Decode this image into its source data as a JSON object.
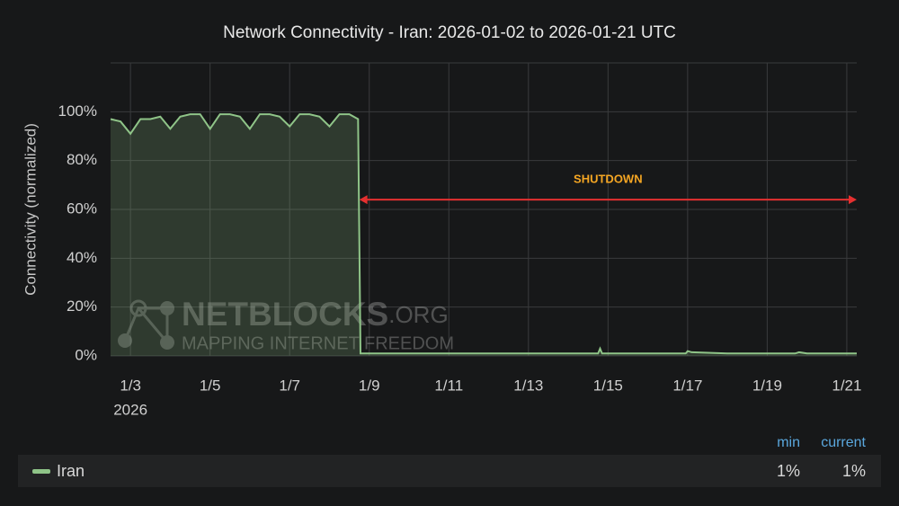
{
  "chart_data": {
    "type": "line",
    "title": "Network Connectivity - Iran: 2026-01-02 to 2026-01-21 UTC",
    "y_label": "Connectivity (normalized)",
    "x_year_label": "2026",
    "x": [
      2.5,
      2.75,
      3.0,
      3.25,
      3.5,
      3.75,
      4.0,
      4.25,
      4.5,
      4.75,
      5.0,
      5.25,
      5.5,
      5.75,
      6.0,
      6.25,
      6.5,
      6.75,
      7.0,
      7.25,
      7.5,
      7.75,
      8.0,
      8.25,
      8.5,
      8.72,
      8.78,
      9.0,
      10.0,
      11.0,
      12.0,
      13.0,
      14.0,
      14.75,
      14.8,
      14.85,
      15.0,
      16.0,
      16.95,
      17.0,
      17.1,
      18.0,
      19.0,
      19.7,
      19.8,
      20.0,
      21.0,
      21.25
    ],
    "series": [
      {
        "name": "Iran",
        "color": "#8fc488",
        "values": [
          97,
          96,
          91,
          97,
          97,
          98,
          93,
          98,
          99,
          99,
          93,
          99,
          99,
          98,
          93,
          99,
          99,
          98,
          94,
          99,
          99,
          98,
          94,
          99,
          99,
          97,
          1,
          1,
          1,
          1,
          1,
          1,
          1,
          1,
          3,
          1,
          1,
          1,
          1,
          2,
          1.5,
          1,
          1,
          1,
          1.5,
          1,
          1,
          1
        ]
      }
    ],
    "xlim": [
      2.5,
      21.25
    ],
    "xticks": [
      {
        "value": 3,
        "label": "1/3"
      },
      {
        "value": 5,
        "label": "1/5"
      },
      {
        "value": 7,
        "label": "1/7"
      },
      {
        "value": 9,
        "label": "1/9"
      },
      {
        "value": 11,
        "label": "1/11"
      },
      {
        "value": 13,
        "label": "1/13"
      },
      {
        "value": 15,
        "label": "1/15"
      },
      {
        "value": 17,
        "label": "1/17"
      },
      {
        "value": 19,
        "label": "1/19"
      },
      {
        "value": 21,
        "label": "1/21"
      }
    ],
    "ylim": [
      0,
      120
    ],
    "yticks": [
      {
        "value": 0,
        "label": "0%"
      },
      {
        "value": 20,
        "label": "20%"
      },
      {
        "value": 40,
        "label": "40%"
      },
      {
        "value": 60,
        "label": "60%"
      },
      {
        "value": 80,
        "label": "80%"
      },
      {
        "value": 100,
        "label": "100%"
      }
    ],
    "grid": true,
    "annotation": {
      "text": "SHUTDOWN",
      "x_start": 8.75,
      "x_end": 21.25,
      "y": 64,
      "color": "#e53030",
      "text_color": "#f5a623"
    },
    "watermark": {
      "title": "NETBLOCKS",
      "suffix": ".ORG",
      "tagline": "MAPPING INTERNET FREEDOM"
    },
    "legend_stats": {
      "headers": [
        "min",
        "current"
      ],
      "values": [
        1,
        1
      ],
      "value_labels": [
        "1%",
        "1%"
      ]
    }
  }
}
